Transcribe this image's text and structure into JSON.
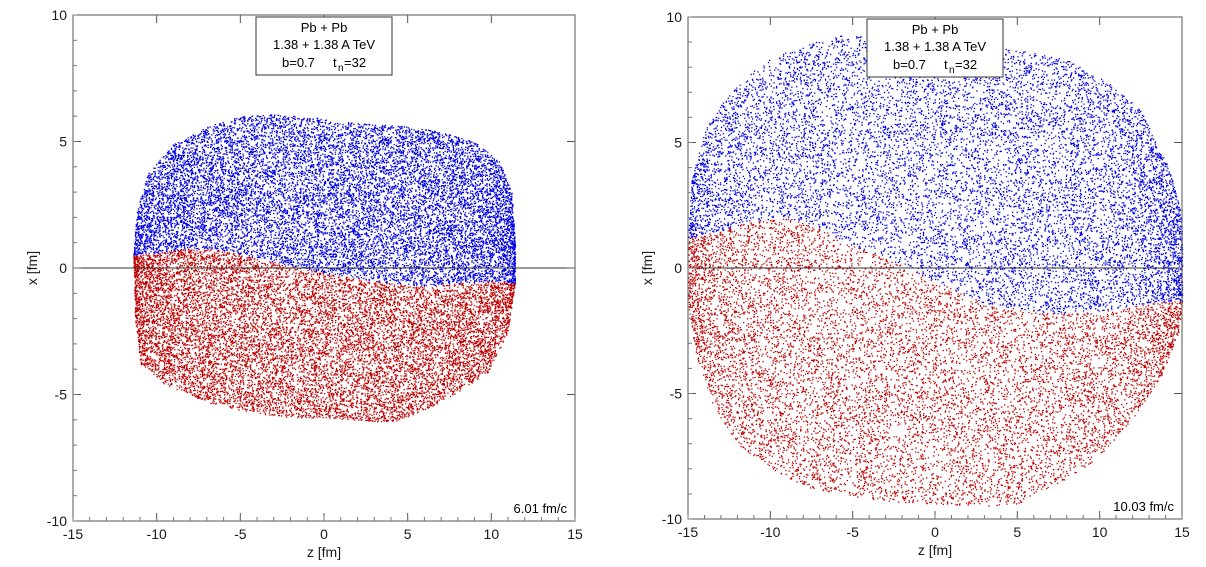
{
  "chart_data": [
    {
      "type": "scatter",
      "xlabel": "z  [fm]",
      "ylabel": "x [fm]",
      "xlim": [
        -15,
        15
      ],
      "ylim": [
        -10,
        10
      ],
      "xticks": [
        -15,
        -10,
        -5,
        0,
        5,
        10,
        15
      ],
      "yticks": [
        -10,
        -5,
        0,
        5,
        10
      ],
      "xtick_labels": [
        "-15",
        "-10",
        "-5",
        "0",
        "5",
        "10",
        "15"
      ],
      "ytick_labels": [
        "-10",
        "-5",
        "0",
        "5",
        "10"
      ],
      "zero_line": true,
      "info_box": {
        "line1": "Pb + Pb",
        "line2": "1.38 + 1.38  A TeV",
        "line3_b": "b=0.7",
        "line3_t": "t",
        "line3_tsub": "n",
        "line3_tval": "=32"
      },
      "time_label": "6.01 fm/c",
      "colors": {
        "upper": "#0000e6",
        "lower": "#c00000"
      },
      "series": [
        {
          "region": "upper",
          "z_range": [
            -11.4,
            11.4
          ],
          "top_edge": [
            [
              -11.4,
              0.5
            ],
            [
              -11.2,
              2.3
            ],
            [
              -10.5,
              3.8
            ],
            [
              -9,
              4.9
            ],
            [
              -7,
              5.6
            ],
            [
              -5,
              6.0
            ],
            [
              -3,
              6.1
            ],
            [
              -1,
              6.0
            ],
            [
              1,
              5.8
            ],
            [
              3,
              5.7
            ],
            [
              5,
              5.6
            ],
            [
              7,
              5.4
            ],
            [
              9,
              5.0
            ],
            [
              10.5,
              4.2
            ],
            [
              11.2,
              3.0
            ],
            [
              11.4,
              1.0
            ]
          ],
          "divider": [
            [
              -11.4,
              0.5
            ],
            [
              -10,
              0.6
            ],
            [
              -8,
              0.8
            ],
            [
              -6,
              0.7
            ],
            [
              -4,
              0.4
            ],
            [
              -2,
              0.1
            ],
            [
              0,
              -0.2
            ],
            [
              2,
              -0.4
            ],
            [
              4,
              -0.6
            ],
            [
              6,
              -0.7
            ],
            [
              8,
              -0.6
            ],
            [
              10,
              -0.5
            ],
            [
              11.4,
              -0.6
            ]
          ]
        },
        {
          "region": "lower",
          "z_range": [
            -11.4,
            11.4
          ],
          "bottom_edge": [
            [
              -11.4,
              0.5
            ],
            [
              -11.3,
              -2
            ],
            [
              -11,
              -3.8
            ],
            [
              -9.5,
              -4.6
            ],
            [
              -7,
              -5.3
            ],
            [
              -4.5,
              -5.7
            ],
            [
              -2,
              -5.9
            ],
            [
              0,
              -5.9
            ],
            [
              2,
              -6.0
            ],
            [
              4,
              -6.1
            ],
            [
              6,
              -5.6
            ],
            [
              8,
              -4.9
            ],
            [
              9.8,
              -4.1
            ],
            [
              11,
              -2.5
            ],
            [
              11.4,
              -0.6
            ]
          ]
        }
      ]
    },
    {
      "type": "scatter",
      "xlabel": "z  [fm]",
      "ylabel": "x [fm]",
      "xlim": [
        -15,
        15
      ],
      "ylim": [
        -10,
        10
      ],
      "xticks": [
        -15,
        -10,
        -5,
        0,
        5,
        10,
        15
      ],
      "yticks": [
        -10,
        -5,
        0,
        5,
        10
      ],
      "xtick_labels": [
        "-15",
        "-10",
        "-5",
        "0",
        "5",
        "10",
        "15"
      ],
      "ytick_labels": [
        "-10",
        "-5",
        "0",
        "5",
        "10"
      ],
      "zero_line": true,
      "info_box": {
        "line1": "Pb + Pb",
        "line2": "1.38 + 1.38  A TeV",
        "line3_b": "b=0.7",
        "line3_t": "t",
        "line3_tsub": "n",
        "line3_tval": "=32"
      },
      "time_label": "10.03 fm/c",
      "colors": {
        "upper": "#0000e6",
        "lower": "#c00000"
      },
      "series": [
        {
          "region": "upper",
          "z_range": [
            -15,
            15
          ],
          "top_edge": [
            [
              -15,
              1.2
            ],
            [
              -14.8,
              3.5
            ],
            [
              -14,
              5.5
            ],
            [
              -12.5,
              7.0
            ],
            [
              -10.5,
              8.2
            ],
            [
              -8,
              8.9
            ],
            [
              -5.5,
              9.3
            ],
            [
              -3,
              9.2
            ],
            [
              -1,
              9.0
            ],
            [
              2,
              8.9
            ],
            [
              5,
              8.7
            ],
            [
              8,
              8.3
            ],
            [
              10.5,
              7.4
            ],
            [
              12.5,
              6.3
            ],
            [
              14.2,
              4.0
            ],
            [
              15,
              2.0
            ],
            [
              15,
              0
            ]
          ],
          "divider": [
            [
              -15,
              1.2
            ],
            [
              -13,
              1.5
            ],
            [
              -11,
              1.9
            ],
            [
              -9,
              2.0
            ],
            [
              -7,
              1.6
            ],
            [
              -5,
              0.9
            ],
            [
              -3,
              0.4
            ],
            [
              -1,
              -0.2
            ],
            [
              1,
              -0.8
            ],
            [
              3,
              -1.4
            ],
            [
              5,
              -1.6
            ],
            [
              7,
              -1.8
            ],
            [
              9,
              -1.8
            ],
            [
              11,
              -1.6
            ],
            [
              13,
              -1.4
            ],
            [
              15,
              -1.3
            ]
          ]
        },
        {
          "region": "lower",
          "z_range": [
            -15,
            15
          ],
          "bottom_edge": [
            [
              -15,
              1.2
            ],
            [
              -15,
              -1.5
            ],
            [
              -14.5,
              -3.5
            ],
            [
              -13.5,
              -5.5
            ],
            [
              -12,
              -7.0
            ],
            [
              -10,
              -8.0
            ],
            [
              -7.5,
              -8.8
            ],
            [
              -5,
              -9.1
            ],
            [
              -2.5,
              -9.3
            ],
            [
              0,
              -9.4
            ],
            [
              2.5,
              -9.5
            ],
            [
              5,
              -9.4
            ],
            [
              7.5,
              -8.6
            ],
            [
              10,
              -7.5
            ],
            [
              12,
              -6.0
            ],
            [
              13.8,
              -4.2
            ],
            [
              14.8,
              -2.5
            ],
            [
              15,
              -1.3
            ]
          ]
        }
      ]
    }
  ]
}
